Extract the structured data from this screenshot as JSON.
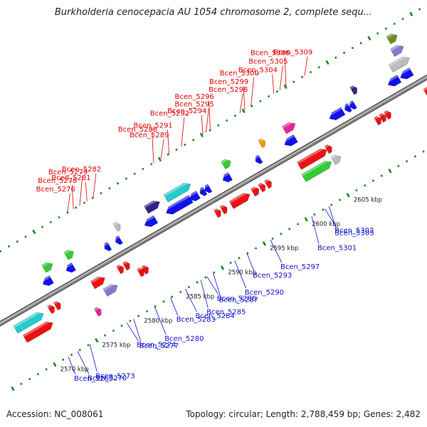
{
  "title": "Burkholderia cenocepacia AU 1054 chromosome 2, complete sequ...",
  "accession": "Accession: NC_008061",
  "summary": "Topology: circular; Length: 2,788,459 bp; Genes: 2,482",
  "colors": {
    "backbone": "#8c8c8c",
    "top_label": "#e00000",
    "bottom_label": "#1010cc",
    "tick": "#1a8a1a",
    "red": "#ee1111",
    "blue": "#1111ee",
    "green": "#33cc33",
    "cyan": "#22cccc",
    "purple": "#8877cc",
    "navy": "#332288",
    "magenta": "#ee2299",
    "grey": "#bbbbbb",
    "olive": "#6b8e23",
    "orange": "#ff9900"
  },
  "kbp_labels": [
    {
      "text": "2570 kbp",
      "pos": 40
    },
    {
      "text": "2575 kbp",
      "pos": 108
    },
    {
      "text": "2580 kbp",
      "pos": 176
    },
    {
      "text": "2585 kbp",
      "pos": 244
    },
    {
      "text": "2590 kbp",
      "pos": 312
    },
    {
      "text": "2595 kbp",
      "pos": 380
    },
    {
      "text": "2600 kbp",
      "pos": 448
    },
    {
      "text": "2605 kbp",
      "pos": 516
    }
  ],
  "top_labels": [
    {
      "text": "Bcen_5276",
      "pos": 160
    },
    {
      "text": "Bcen_5278",
      "pos": 170
    },
    {
      "text": "Bcen_5279",
      "pos": 180
    },
    {
      "text": "Bcen_5281",
      "pos": 192
    },
    {
      "text": "Bcen_5282",
      "pos": 202
    },
    {
      "text": "Bcen_5288",
      "pos": 300
    },
    {
      "text": "Bcen_5289",
      "pos": 312
    },
    {
      "text": "Bcen_5291",
      "pos": 325
    },
    {
      "text": "Bcen_5292",
      "pos": 345
    },
    {
      "text": "Bcen_5294",
      "pos": 380
    },
    {
      "text": "Bcen_5295",
      "pos": 385
    },
    {
      "text": "Bcen_5296",
      "pos": 392
    },
    {
      "text": "Bcen_5298",
      "pos": 440
    },
    {
      "text": "Bcen_5299",
      "pos": 448
    },
    {
      "text": "Bcen_5300",
      "pos": 458
    },
    {
      "text": "Bcen_5304",
      "pos": 495
    },
    {
      "text": "Bcen_5305",
      "pos": 505
    },
    {
      "text": "Bcen_5306",
      "pos": 515
    },
    {
      "text": "Bcen_5309",
      "pos": 545
    }
  ],
  "bottom_labels": [
    {
      "text": "Bcen_5269",
      "pos": 60
    },
    {
      "text": "Bcen_5270",
      "pos": 75
    },
    {
      "text": "Bcen_5273",
      "pos": 95
    },
    {
      "text": "Bcen_5274",
      "pos": 155
    },
    {
      "text": "Bcen_5277",
      "pos": 166
    },
    {
      "text": "Bcen_5280",
      "pos": 200
    },
    {
      "text": "Bcen_5283",
      "pos": 226
    },
    {
      "text": "Bcen_5284",
      "pos": 250
    },
    {
      "text": "Bcen_5285",
      "pos": 275
    },
    {
      "text": "Bcen_5286",
      "pos": 285
    },
    {
      "text": "Bcen_5287",
      "pos": 295
    },
    {
      "text": "Bcen_5290",
      "pos": 330
    },
    {
      "text": "Bcen_5293",
      "pos": 350
    },
    {
      "text": "Bcen_5297",
      "pos": 388
    },
    {
      "text": "Bcen_5301",
      "pos": 455
    },
    {
      "text": "Bcen_5302",
      "pos": 476
    },
    {
      "text": "Bcen_5303",
      "pos": 483
    }
  ],
  "features": [
    {
      "pos": 15,
      "len": 45,
      "track": -1,
      "color": "cyan",
      "dir": 1
    },
    {
      "pos": 20,
      "len": 45,
      "track": -2,
      "color": "red",
      "dir": 1
    },
    {
      "pos": 70,
      "len": 8,
      "track": -1,
      "color": "red",
      "dir": 1
    },
    {
      "pos": 80,
      "len": 8,
      "track": -1,
      "color": "red",
      "dir": 1
    },
    {
      "pos": 80,
      "len": 14,
      "track": 1,
      "color": "blue",
      "dir": -1
    },
    {
      "pos": 92,
      "len": 14,
      "track": 2,
      "color": "green",
      "dir": 1
    },
    {
      "pos": 118,
      "len": 12,
      "track": 1,
      "color": "blue",
      "dir": -1
    },
    {
      "pos": 128,
      "len": 12,
      "track": 2,
      "color": "green",
      "dir": 1
    },
    {
      "pos": 125,
      "len": 8,
      "track": -3,
      "color": "magenta",
      "dir": 1
    },
    {
      "pos": 140,
      "len": 20,
      "track": -1,
      "color": "red",
      "dir": 1
    },
    {
      "pos": 150,
      "len": 20,
      "track": -2,
      "color": "purple",
      "dir": 1
    },
    {
      "pos": 182,
      "len": 8,
      "track": -1,
      "color": "red",
      "dir": 1
    },
    {
      "pos": 192,
      "len": 8,
      "track": -1,
      "color": "red",
      "dir": 1
    },
    {
      "pos": 205,
      "len": 8,
      "track": -2,
      "color": "red",
      "dir": 1
    },
    {
      "pos": 212,
      "len": 8,
      "track": -2,
      "color": "red",
      "dir": 1
    },
    {
      "pos": 180,
      "len": 8,
      "track": 1,
      "color": "blue",
      "dir": -1
    },
    {
      "pos": 198,
      "len": 8,
      "track": 1,
      "color": "blue",
      "dir": -1
    },
    {
      "pos": 208,
      "len": 8,
      "track": 2,
      "color": "grey",
      "dir": 1
    },
    {
      "pos": 245,
      "len": 18,
      "track": 1,
      "color": "blue",
      "dir": -1
    },
    {
      "pos": 258,
      "len": 22,
      "track": 2,
      "color": "navy",
      "dir": 1
    },
    {
      "pos": 280,
      "len": 40,
      "track": 1,
      "color": "blue",
      "dir": -1
    },
    {
      "pos": 290,
      "len": 40,
      "track": 2,
      "color": "cyan",
      "dir": 1
    },
    {
      "pos": 318,
      "len": 14,
      "track": 1,
      "color": "blue",
      "dir": -1
    },
    {
      "pos": 335,
      "len": 8,
      "track": 1,
      "color": "blue",
      "dir": -1
    },
    {
      "pos": 343,
      "len": 8,
      "track": 1,
      "color": "blue",
      "dir": -1
    },
    {
      "pos": 340,
      "len": 8,
      "track": -1,
      "color": "red",
      "dir": 1
    },
    {
      "pos": 350,
      "len": 8,
      "track": -1,
      "color": "red",
      "dir": 1
    },
    {
      "pos": 372,
      "len": 12,
      "track": 1,
      "color": "blue",
      "dir": -1
    },
    {
      "pos": 383,
      "len": 12,
      "track": 2,
      "color": "green",
      "dir": 1
    },
    {
      "pos": 365,
      "len": 30,
      "track": -1,
      "color": "red",
      "dir": 1
    },
    {
      "pos": 400,
      "len": 10,
      "track": -1,
      "color": "red",
      "dir": 1
    },
    {
      "pos": 412,
      "len": 8,
      "track": -1,
      "color": "red",
      "dir": 1
    },
    {
      "pos": 422,
      "len": 8,
      "track": -1,
      "color": "red",
      "dir": 1
    },
    {
      "pos": 425,
      "len": 8,
      "track": 1,
      "color": "blue",
      "dir": -1
    },
    {
      "pos": 443,
      "len": 8,
      "track": 2,
      "color": "orange",
      "dir": 1
    },
    {
      "pos": 472,
      "len": 18,
      "track": 1,
      "color": "blue",
      "dir": -1
    },
    {
      "pos": 482,
      "len": 18,
      "track": 2,
      "color": "magenta",
      "dir": 1
    },
    {
      "pos": 472,
      "len": 45,
      "track": -2,
      "color": "green",
      "dir": 1
    },
    {
      "pos": 475,
      "len": 45,
      "track": -1,
      "color": "red",
      "dir": 1
    },
    {
      "pos": 520,
      "len": 12,
      "track": -2,
      "color": "grey",
      "dir": 1
    },
    {
      "pos": 520,
      "len": 8,
      "track": -1,
      "color": "red",
      "dir": 1
    },
    {
      "pos": 545,
      "len": 22,
      "track": 1,
      "color": "blue",
      "dir": -1
    },
    {
      "pos": 570,
      "len": 8,
      "track": 1,
      "color": "blue",
      "dir": -1
    },
    {
      "pos": 578,
      "len": 8,
      "track": 1,
      "color": "blue",
      "dir": -1
    },
    {
      "pos": 592,
      "len": 8,
      "track": 2,
      "color": "navy",
      "dir": 1
    },
    {
      "pos": 600,
      "len": 8,
      "track": -1,
      "color": "red",
      "dir": 1
    },
    {
      "pos": 608,
      "len": 8,
      "track": -1,
      "color": "red",
      "dir": 1
    },
    {
      "pos": 616,
      "len": 8,
      "track": -1,
      "color": "red",
      "dir": 1
    },
    {
      "pos": 640,
      "len": 18,
      "track": 1,
      "color": "blue",
      "dir": -1
    },
    {
      "pos": 660,
      "len": 18,
      "track": 1,
      "color": "blue",
      "dir": -1
    },
    {
      "pos": 655,
      "len": 30,
      "track": 2,
      "color": "grey",
      "dir": 1
    },
    {
      "pos": 668,
      "len": 18,
      "track": 3,
      "color": "purple",
      "dir": 1
    },
    {
      "pos": 672,
      "len": 14,
      "track": 4,
      "color": "olive",
      "dir": 1
    },
    {
      "pos": 680,
      "len": 18,
      "track": -1,
      "color": "red",
      "dir": 1
    }
  ]
}
